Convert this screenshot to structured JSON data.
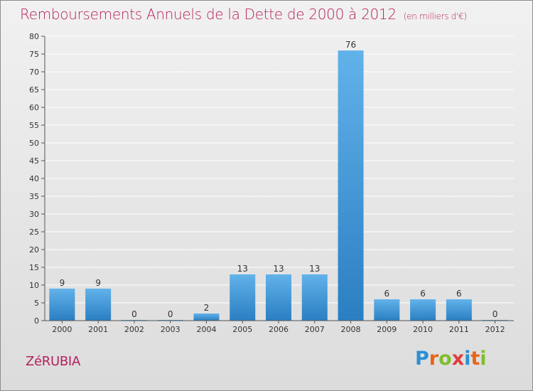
{
  "title": "Remboursements Annuels de la Dette de 2000 à 2012",
  "subtitle": "(en milliers d'€)",
  "town": "ZéRUBIA",
  "brand": {
    "letters": [
      "P",
      "r",
      "o",
      "x",
      "i",
      "t",
      "i"
    ],
    "colors": [
      "#2a8fd6",
      "#e8641b",
      "#7fbf2a",
      "#e23c3c",
      "#2a8fd6",
      "#e8641b",
      "#7fbf2a"
    ]
  },
  "colors": {
    "bar": "#3a95d8",
    "bar_light": "#62b2ea",
    "title": "#b5205c",
    "grid": "#ffffff"
  },
  "chart_data": {
    "type": "bar",
    "categories": [
      "2000",
      "2001",
      "2002",
      "2003",
      "2004",
      "2005",
      "2006",
      "2007",
      "2008",
      "2009",
      "2010",
      "2011",
      "2012"
    ],
    "values": [
      9,
      9,
      0,
      0,
      2,
      13,
      13,
      13,
      76,
      6,
      6,
      6,
      0
    ],
    "data_labels": [
      "9",
      "9",
      "0",
      "0",
      "2",
      "13",
      "13",
      "13",
      "76",
      "6",
      "6",
      "6",
      "0"
    ],
    "title": "Remboursements Annuels de la Dette de 2000 à 2012",
    "subtitle": "(en milliers d'€)",
    "xlabel": "",
    "ylabel": "",
    "ylim": [
      0,
      80
    ],
    "yticks": [
      0,
      5,
      10,
      15,
      20,
      25,
      30,
      35,
      40,
      45,
      50,
      55,
      60,
      65,
      70,
      75,
      80
    ],
    "grid": true
  }
}
